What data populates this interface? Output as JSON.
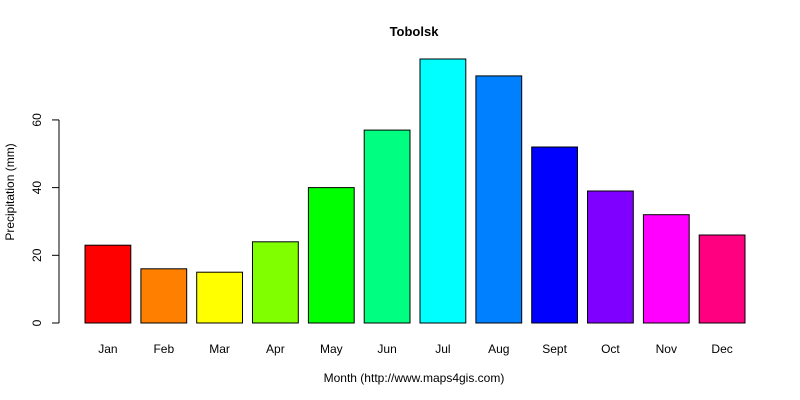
{
  "chart_data": {
    "type": "bar",
    "title": "Tobolsk",
    "xlabel": "Month (http://www.maps4gis.com)",
    "ylabel": "Precipitation (mm)",
    "categories": [
      "Jan",
      "Feb",
      "Mar",
      "Apr",
      "May",
      "Jun",
      "Jul",
      "Aug",
      "Sept",
      "Oct",
      "Nov",
      "Dec"
    ],
    "values": [
      23,
      16,
      15,
      24,
      40,
      57,
      78,
      73,
      52,
      39,
      32,
      26
    ],
    "colors": [
      "#FF0000",
      "#FF8000",
      "#FFFF00",
      "#80FF00",
      "#00FF00",
      "#00FF80",
      "#00FFFF",
      "#0080FF",
      "#0000FF",
      "#8000FF",
      "#FF00FF",
      "#FF0080"
    ],
    "yticks": [
      "0",
      "20",
      "40",
      "60"
    ],
    "ylim": [
      0,
      78
    ],
    "grid": false,
    "legend": "none"
  }
}
